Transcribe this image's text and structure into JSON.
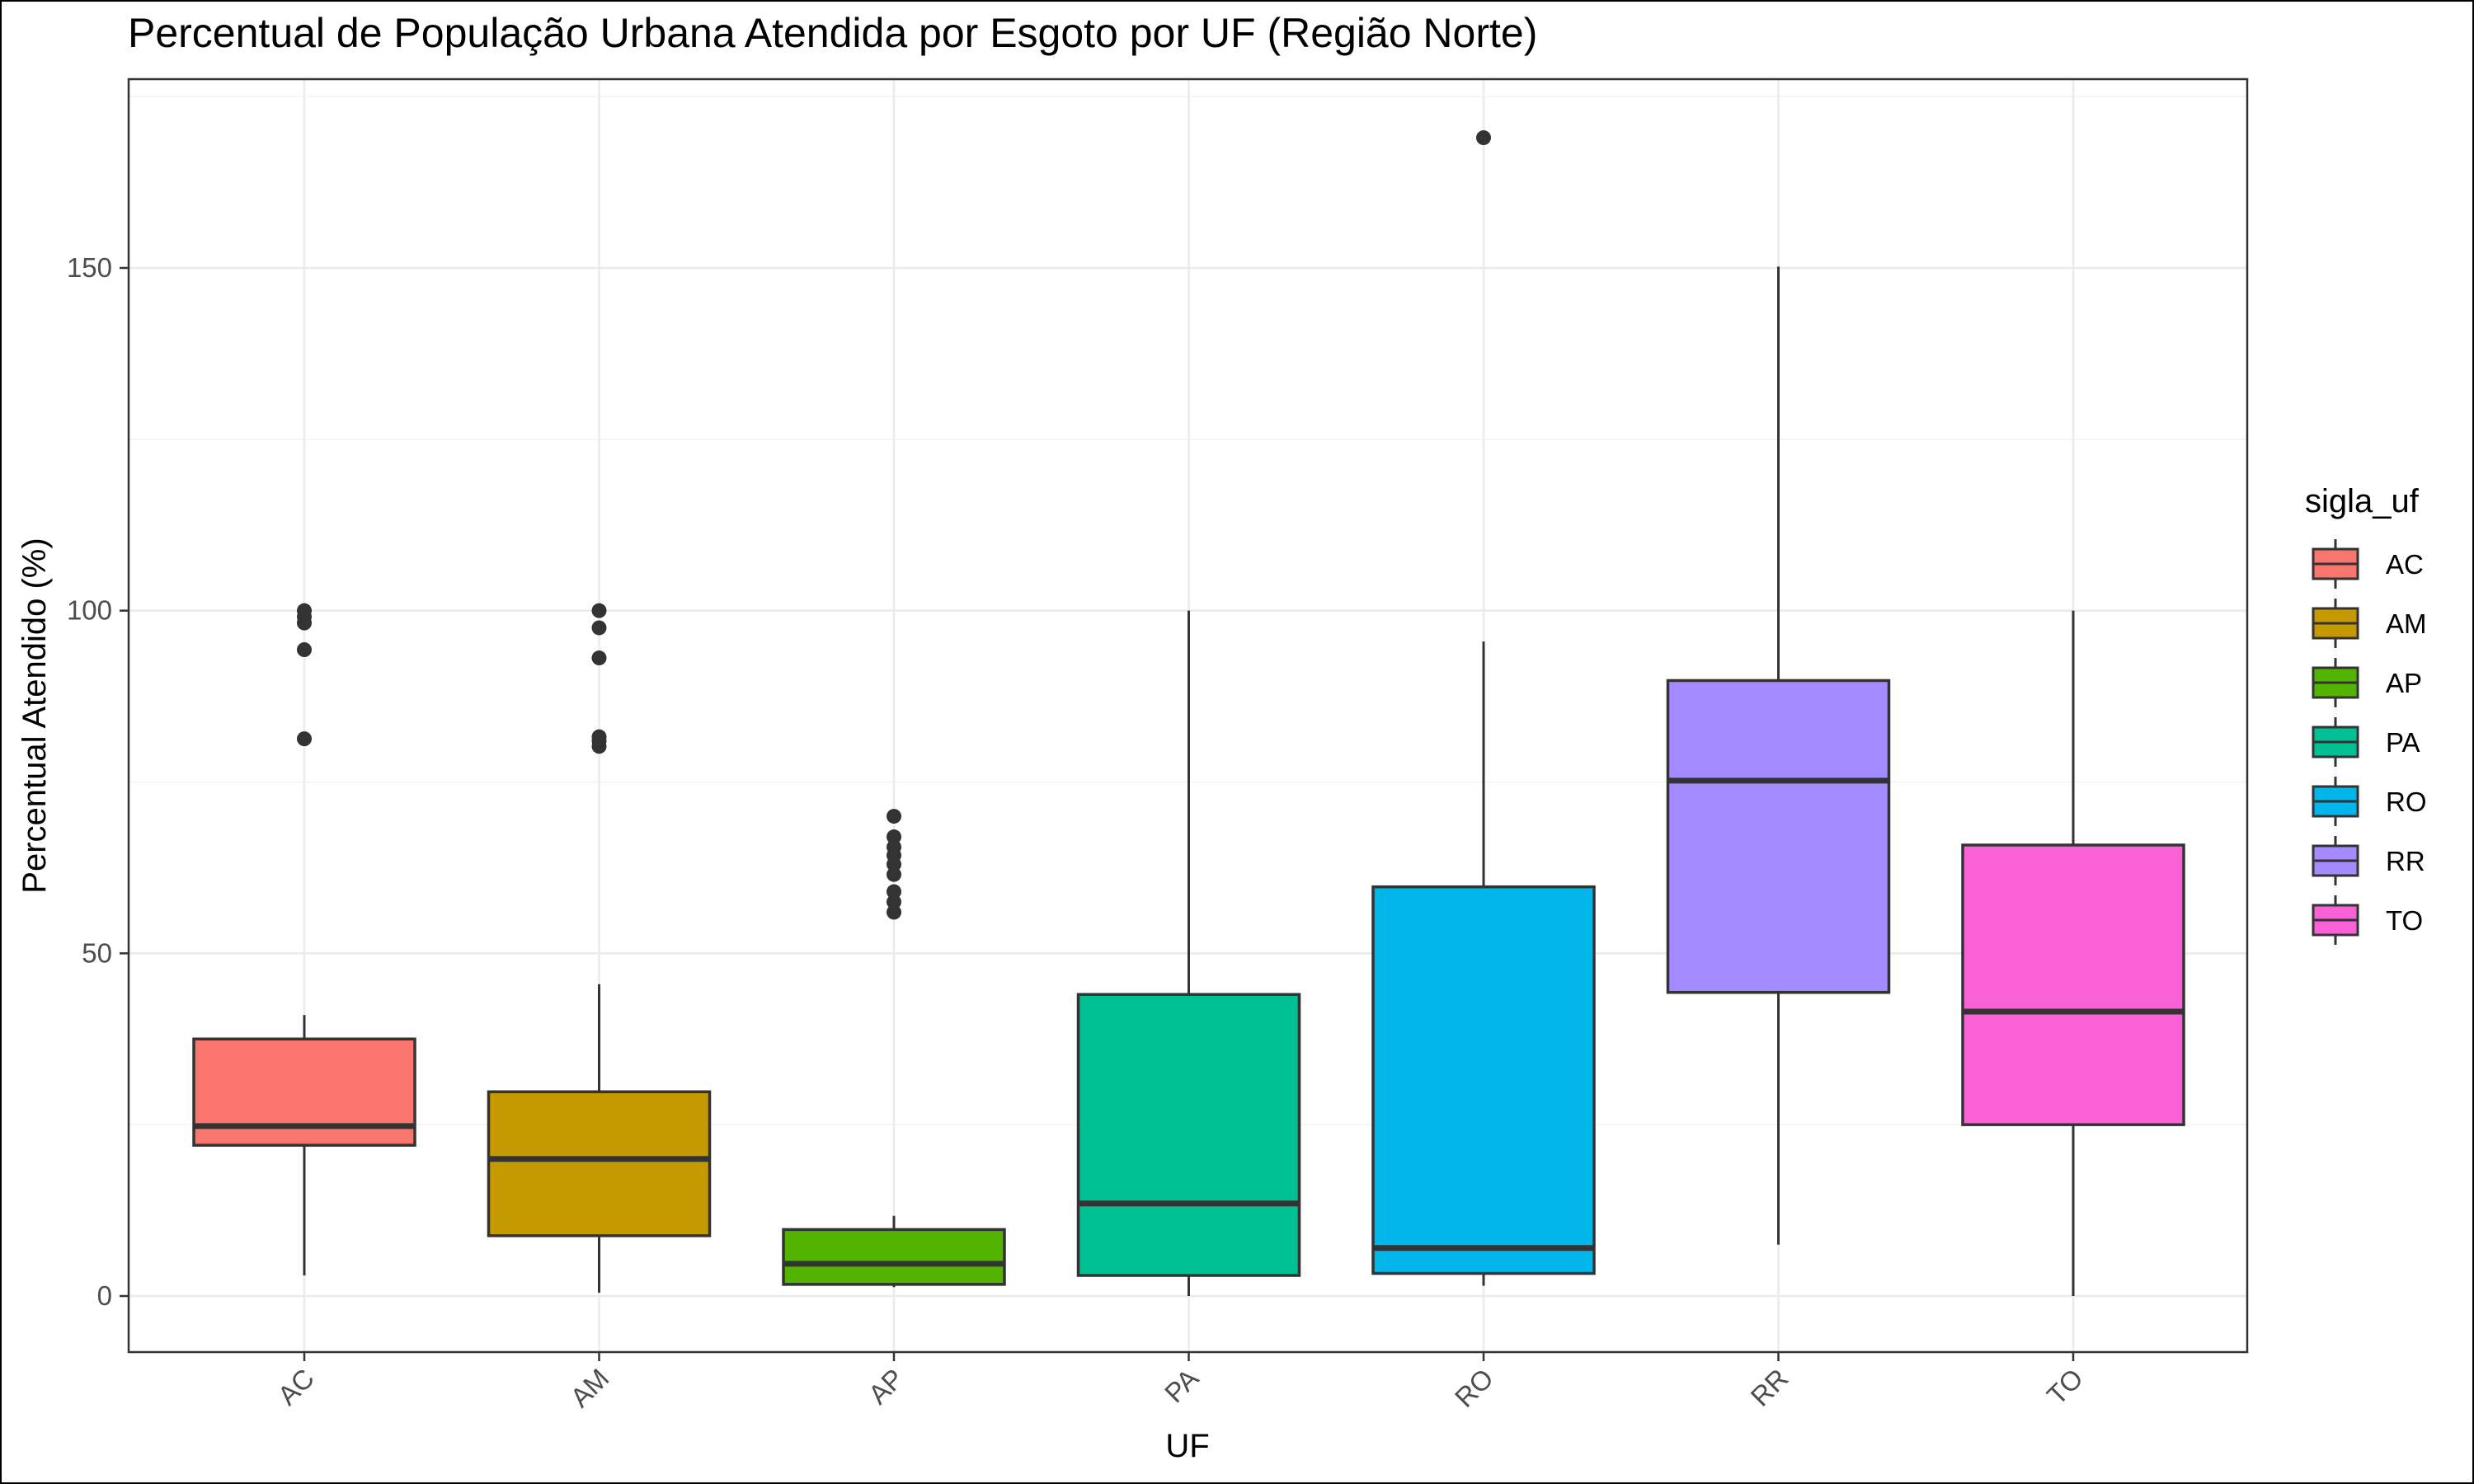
{
  "chart_data": {
    "type": "boxplot",
    "title": "Percentual de População Urbana Atendida por Esgoto por UF (Região Norte)",
    "xlabel": "UF",
    "ylabel": "Percentual Atendido (%)",
    "ylim": [
      -8,
      178
    ],
    "yticks": [
      0,
      50,
      100,
      150
    ],
    "grid": true,
    "legend_title": "sigla_uf",
    "legend_position": "right",
    "categories": [
      "AC",
      "AM",
      "AP",
      "PA",
      "RO",
      "RR",
      "TO"
    ],
    "series": [
      {
        "name": "AC",
        "color": "#F8766D",
        "whisker_low": 3,
        "q1": 22,
        "median": 24.8,
        "q3": 37.5,
        "whisker_high": 41,
        "outliers": [
          81.3,
          94.3,
          98.2,
          99.1,
          100
        ]
      },
      {
        "name": "AM",
        "color": "#C49A00",
        "whisker_low": 0.5,
        "q1": 8.8,
        "median": 20,
        "q3": 29.8,
        "whisker_high": 45.5,
        "outliers": [
          80.2,
          81,
          81.6,
          93.1,
          97.5,
          100
        ]
      },
      {
        "name": "AP",
        "color": "#53B400",
        "whisker_low": 1.3,
        "q1": 1.7,
        "median": 4.7,
        "q3": 9.7,
        "whisker_high": 11.7,
        "outliers": [
          56,
          57.5,
          59,
          61.5,
          63,
          64.3,
          65.5,
          67,
          70
        ]
      },
      {
        "name": "PA",
        "color": "#00C094",
        "whisker_low": 0,
        "q1": 3,
        "median": 13.5,
        "q3": 44,
        "whisker_high": 100,
        "outliers": []
      },
      {
        "name": "RO",
        "color": "#00B6EB",
        "whisker_low": 1.5,
        "q1": 3.3,
        "median": 7,
        "q3": 59.7,
        "whisker_high": 95.5,
        "outliers": [
          169
        ]
      },
      {
        "name": "RR",
        "color": "#A58AFF",
        "whisker_low": 7.5,
        "q1": 44.3,
        "median": 75.2,
        "q3": 89.8,
        "whisker_high": 150.2,
        "outliers": []
      },
      {
        "name": "TO",
        "color": "#FB61D7",
        "whisker_low": 0,
        "q1": 25,
        "median": 41.5,
        "q3": 65.8,
        "whisker_high": 100,
        "outliers": []
      }
    ]
  }
}
